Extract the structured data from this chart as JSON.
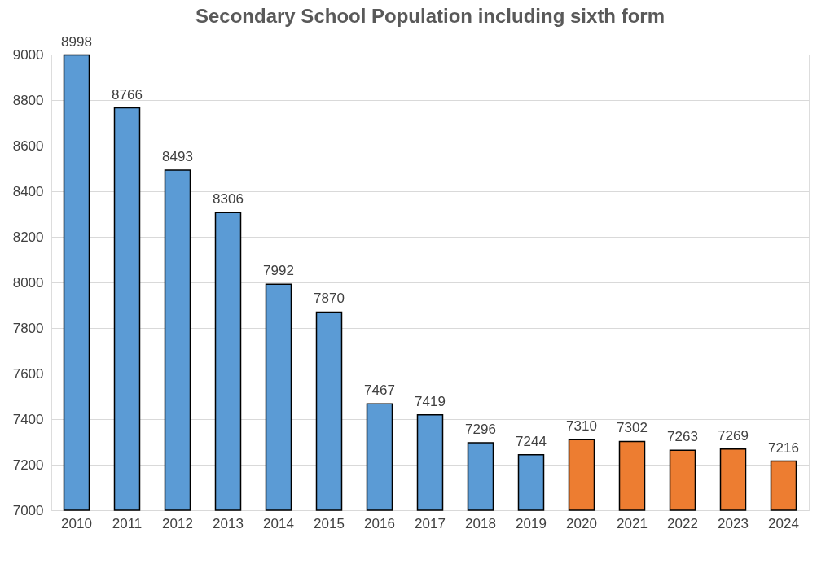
{
  "chart_data": {
    "type": "bar",
    "title": "Secondary School Population including sixth form",
    "categories": [
      "2010",
      "2011",
      "2012",
      "2013",
      "2014",
      "2015",
      "2016",
      "2017",
      "2018",
      "2019",
      "2020",
      "2021",
      "2022",
      "2023",
      "2024"
    ],
    "values": [
      8998,
      8766,
      8493,
      8306,
      7992,
      7870,
      7467,
      7419,
      7296,
      7244,
      7310,
      7302,
      7263,
      7269,
      7216
    ],
    "colors": [
      "#5b9bd5",
      "#5b9bd5",
      "#5b9bd5",
      "#5b9bd5",
      "#5b9bd5",
      "#5b9bd5",
      "#5b9bd5",
      "#5b9bd5",
      "#5b9bd5",
      "#5b9bd5",
      "#ed7d31",
      "#ed7d31",
      "#ed7d31",
      "#ed7d31",
      "#ed7d31"
    ],
    "ylim": [
      7000,
      9000
    ],
    "yticks": [
      7000,
      7200,
      7400,
      7600,
      7800,
      8000,
      8200,
      8400,
      8600,
      8800,
      9000
    ],
    "grid": "y",
    "data_labels": true
  }
}
